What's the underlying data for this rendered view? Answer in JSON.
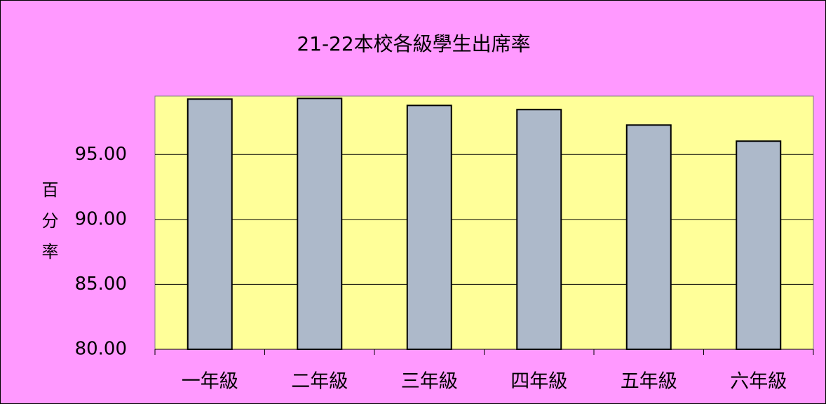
{
  "chart_data": {
    "type": "bar",
    "title": "21-22本校各級學生出席率",
    "y_label": "百分率",
    "categories": [
      "一年級",
      "二年級",
      "三年級",
      "四年級",
      "五年級",
      "六年級"
    ],
    "values": [
      99.27,
      99.32,
      98.78,
      98.46,
      97.27,
      96.03
    ],
    "color": "#adb9ca",
    "ylim": [
      80,
      99.5
    ],
    "yticks": [
      {
        "value": 80,
        "label": "80.00"
      },
      {
        "value": 85,
        "label": "85.00"
      },
      {
        "value": 90,
        "label": "90.00"
      },
      {
        "value": 95,
        "label": "95.00"
      }
    ],
    "grid": true
  }
}
